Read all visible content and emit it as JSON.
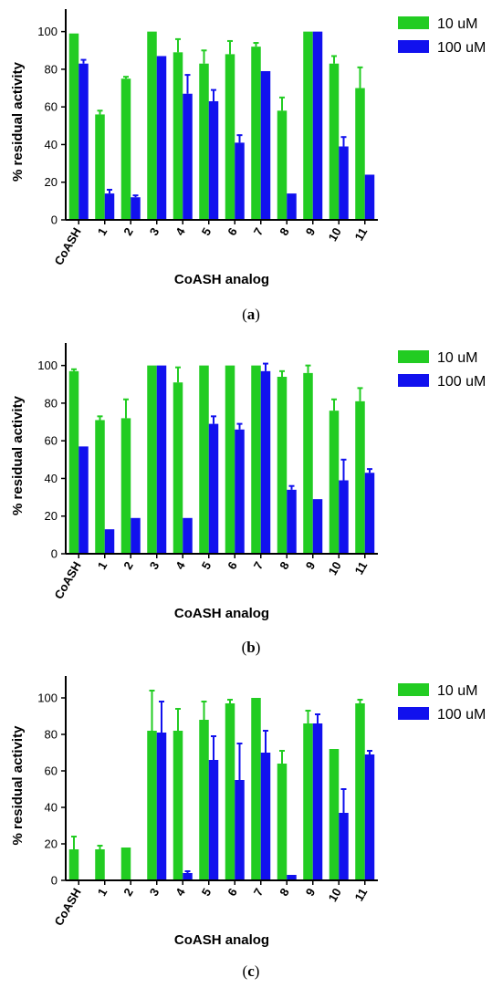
{
  "colors": {
    "series_1": "#22cc22",
    "series_2": "#1111ee",
    "axis": "#000000"
  },
  "chart_data": [
    {
      "type": "bar",
      "caption": {
        "open": "(",
        "letter": "a",
        "close": ")"
      },
      "xlabel": "CoASH analog",
      "ylabel": "% residual activity",
      "ylim": [
        0,
        110
      ],
      "yticks": [
        0,
        20,
        40,
        60,
        80,
        100
      ],
      "categories": [
        "CoASH",
        "1",
        "2",
        "3",
        "4",
        "5",
        "6",
        "7",
        "8",
        "9",
        "10",
        "11"
      ],
      "legend_position": "top-right",
      "series": [
        {
          "name": "10 uM",
          "values": [
            99,
            56,
            75,
            100,
            89,
            83,
            88,
            92,
            58,
            100,
            83,
            70
          ],
          "errors": [
            0,
            2,
            1,
            0,
            7,
            7,
            7,
            2,
            7,
            0,
            4,
            11
          ]
        },
        {
          "name": "100 uM",
          "values": [
            83,
            14,
            12,
            87,
            67,
            63,
            41,
            79,
            14,
            100,
            39,
            24
          ],
          "errors": [
            2,
            2,
            1,
            0,
            10,
            6,
            4,
            0,
            0,
            0,
            5,
            0
          ]
        }
      ]
    },
    {
      "type": "bar",
      "caption": {
        "open": "(",
        "letter": "b",
        "close": ")"
      },
      "xlabel": "CoASH analog",
      "ylabel": "% residual activity",
      "ylim": [
        0,
        110
      ],
      "yticks": [
        0,
        20,
        40,
        60,
        80,
        100
      ],
      "categories": [
        "CoASH",
        "1",
        "2",
        "3",
        "4",
        "5",
        "6",
        "7",
        "8",
        "9",
        "10",
        "11"
      ],
      "legend_position": "top-right",
      "series": [
        {
          "name": "10 uM",
          "values": [
            97,
            71,
            72,
            100,
            91,
            100,
            100,
            100,
            94,
            96,
            76,
            81
          ],
          "errors": [
            1,
            2,
            10,
            0,
            8,
            0,
            0,
            0,
            3,
            4,
            6,
            7
          ]
        },
        {
          "name": "100 uM",
          "values": [
            57,
            13,
            19,
            100,
            19,
            69,
            66,
            97,
            34,
            29,
            39,
            43
          ],
          "errors": [
            0,
            0,
            0,
            0,
            0,
            4,
            3,
            4,
            2,
            0,
            11,
            2
          ]
        }
      ]
    },
    {
      "type": "bar",
      "caption": {
        "open": "(",
        "letter": "c",
        "close": ")"
      },
      "xlabel": "CoASH analog",
      "ylabel": "% residual activity",
      "ylim": [
        0,
        110
      ],
      "yticks": [
        0,
        20,
        40,
        60,
        80,
        100
      ],
      "categories": [
        "CoASH",
        "1",
        "2",
        "3",
        "4",
        "5",
        "6",
        "7",
        "8",
        "9",
        "10",
        "11"
      ],
      "legend_position": "top-right",
      "series": [
        {
          "name": "10 uM",
          "values": [
            17,
            17,
            18,
            82,
            82,
            88,
            97,
            100,
            64,
            86,
            72,
            97
          ],
          "errors": [
            7,
            2,
            0,
            22,
            12,
            10,
            2,
            0,
            7,
            7,
            0,
            2
          ]
        },
        {
          "name": "100 uM",
          "values": [
            0,
            0,
            0,
            81,
            4,
            66,
            55,
            70,
            3,
            86,
            37,
            69
          ],
          "errors": [
            0,
            0,
            0,
            17,
            1,
            13,
            20,
            12,
            0,
            5,
            13,
            2
          ]
        }
      ]
    }
  ]
}
